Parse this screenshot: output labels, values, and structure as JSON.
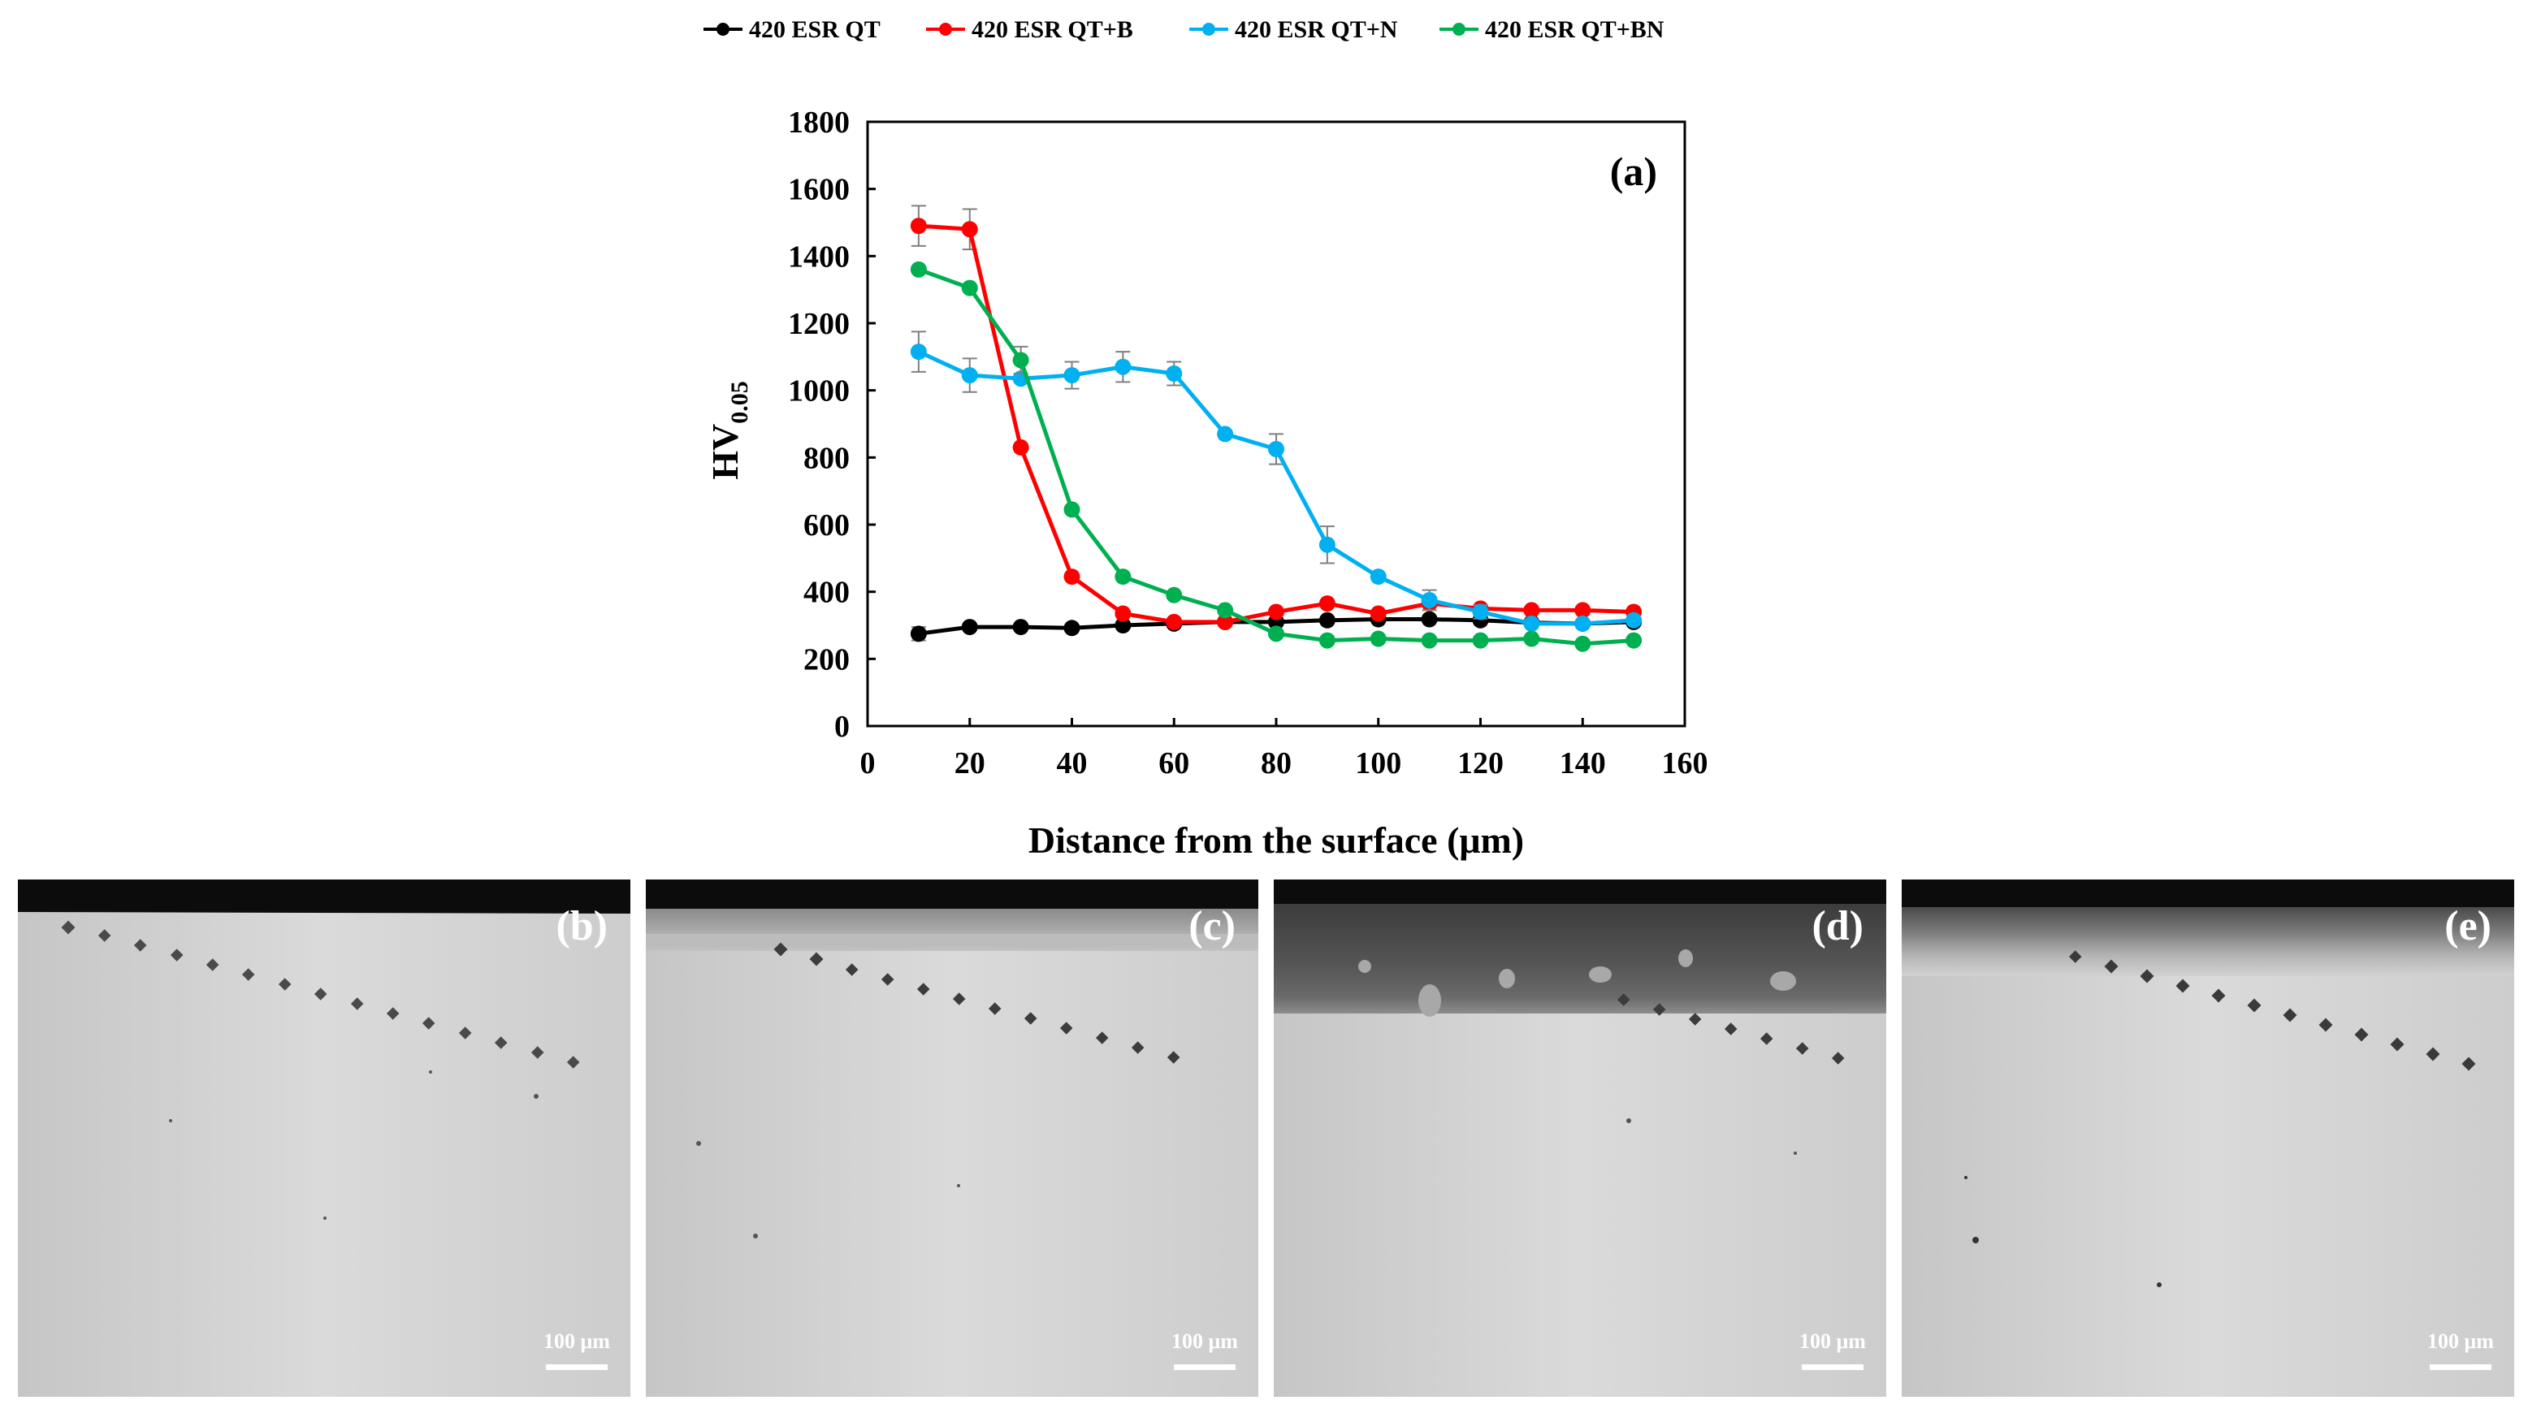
{
  "chart_data": {
    "type": "line",
    "panel_label": "(a)",
    "xlabel": "Distance from the surface (μm)",
    "ylabel_main": "HV",
    "ylabel_sub": "0.05",
    "xlim": [
      0,
      160
    ],
    "ylim": [
      0,
      1800
    ],
    "xticks": [
      0,
      20,
      40,
      60,
      80,
      100,
      120,
      140,
      160
    ],
    "yticks": [
      0,
      200,
      400,
      600,
      800,
      1000,
      1200,
      1400,
      1600,
      1800
    ],
    "x": [
      10,
      20,
      30,
      40,
      50,
      60,
      70,
      80,
      90,
      100,
      110,
      120,
      130,
      140,
      150
    ],
    "series": [
      {
        "name": "420 ESR QT",
        "color": "#000000",
        "values": [
          275,
          295,
          295,
          292,
          300,
          305,
          310,
          310,
          315,
          318,
          318,
          315,
          308,
          305,
          310
        ],
        "errors": [
          20,
          0,
          0,
          0,
          0,
          0,
          0,
          0,
          0,
          0,
          0,
          0,
          0,
          0,
          0
        ]
      },
      {
        "name": "420 ESR QT+B",
        "color": "#ff0000",
        "values": [
          1490,
          1480,
          830,
          445,
          335,
          310,
          310,
          340,
          365,
          335,
          365,
          350,
          345,
          345,
          340
        ],
        "errors": [
          60,
          60,
          0,
          0,
          0,
          0,
          0,
          0,
          0,
          0,
          0,
          0,
          0,
          0,
          0
        ]
      },
      {
        "name": "420 ESR QT+N",
        "color": "#00b0f0",
        "values": [
          1115,
          1045,
          1035,
          1045,
          1070,
          1050,
          870,
          825,
          540,
          445,
          375,
          340,
          305,
          305,
          315
        ],
        "errors": [
          60,
          50,
          0,
          40,
          45,
          35,
          0,
          45,
          55,
          0,
          30,
          20,
          0,
          0,
          0
        ]
      },
      {
        "name": "420 ESR QT+BN",
        "color": "#00b050",
        "values": [
          1360,
          1305,
          1090,
          645,
          445,
          390,
          345,
          275,
          255,
          260,
          255,
          255,
          260,
          245,
          255
        ],
        "errors": [
          0,
          0,
          40,
          0,
          0,
          0,
          0,
          0,
          0,
          0,
          0,
          0,
          0,
          0,
          0
        ]
      }
    ]
  },
  "micrographs": [
    {
      "label": "(b)",
      "scale": "100 μm"
    },
    {
      "label": "(c)",
      "scale": "100 μm"
    },
    {
      "label": "(d)",
      "scale": "100 μm"
    },
    {
      "label": "(e)",
      "scale": "100 μm"
    }
  ]
}
